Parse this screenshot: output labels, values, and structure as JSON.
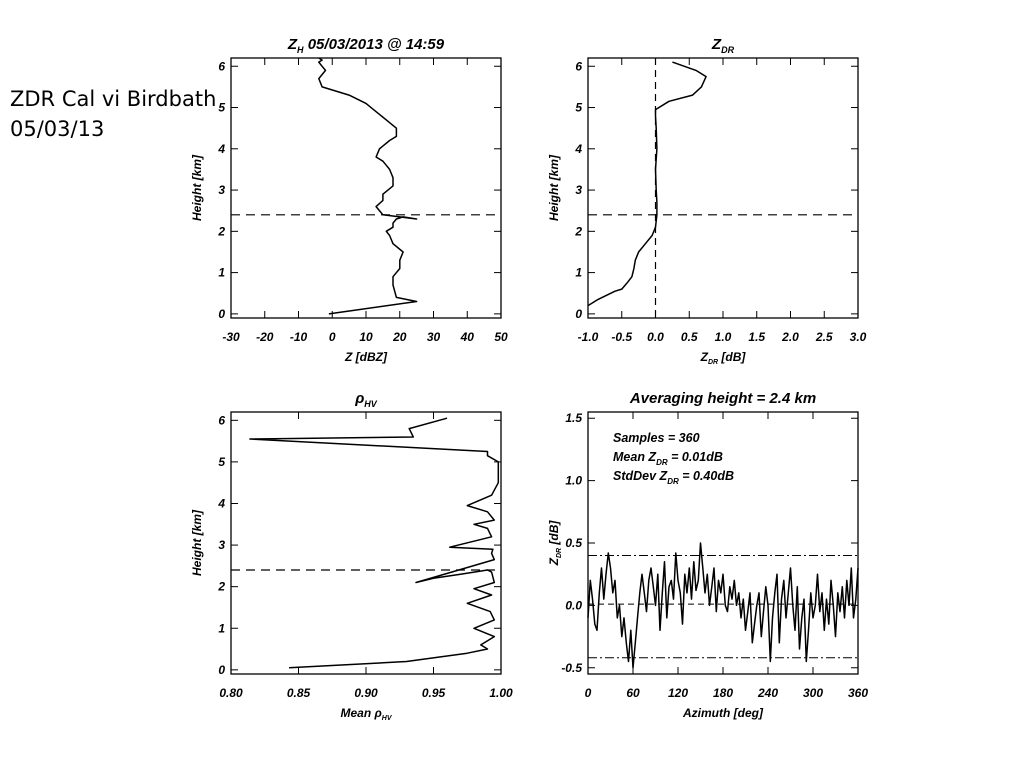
{
  "slide": {
    "title_line1": "ZDR Cal vi Birdbath",
    "title_line2": "05/03/13"
  },
  "colors": {
    "line": "#000000",
    "background": "#ffffff"
  },
  "chart_data": [
    {
      "id": "zh",
      "type": "line",
      "title": "Z",
      "title_sub": "H",
      "title_rest": " 05/03/2013 @ 14:59",
      "xlabel": "Z [dBZ]",
      "ylabel": "Height [km]",
      "xlim": [
        -30,
        50
      ],
      "ylim": [
        -0.1,
        6.2
      ],
      "xticks": [
        "-30",
        "-20",
        "-10",
        "0",
        "10",
        "20",
        "30",
        "40",
        "50"
      ],
      "yticks": [
        "0",
        "1",
        "2",
        "3",
        "4",
        "5",
        "6"
      ],
      "hline": 2.4,
      "series": [
        {
          "x": [
            -1,
            25,
            19,
            18,
            18,
            20,
            20,
            21,
            18,
            17,
            16,
            18,
            18,
            19,
            21,
            25,
            15,
            13,
            15,
            15,
            18,
            18,
            17,
            16,
            15,
            13,
            14,
            17,
            19,
            19,
            16,
            13,
            10,
            5,
            -3,
            -4,
            -2,
            -3,
            -4,
            -3,
            -4
          ],
          "y": [
            0.0,
            0.3,
            0.4,
            0.7,
            0.9,
            1.1,
            1.3,
            1.5,
            1.7,
            1.9,
            2.0,
            2.1,
            2.2,
            2.3,
            2.35,
            2.3,
            2.4,
            2.6,
            2.75,
            2.9,
            3.1,
            3.3,
            3.5,
            3.6,
            3.7,
            3.8,
            4.0,
            4.2,
            4.3,
            4.5,
            4.7,
            4.9,
            5.1,
            5.3,
            5.5,
            5.7,
            5.9,
            6.0,
            6.1,
            6.15,
            6.2
          ]
        }
      ]
    },
    {
      "id": "zdr",
      "type": "line",
      "title": "Z",
      "title_sub": "DR",
      "title_rest": "",
      "xlabel": "Z",
      "xlabel_sub": "DR",
      "xlabel_rest": " [dB]",
      "ylabel": "Height [km]",
      "xlim": [
        -1.0,
        3.0
      ],
      "ylim": [
        -0.1,
        6.2
      ],
      "xticks": [
        "-1.0",
        "-0.5",
        "0.0",
        "0.5",
        "1.0",
        "1.5",
        "2.0",
        "2.5",
        "3.0"
      ],
      "yticks": [
        "0",
        "1",
        "2",
        "3",
        "4",
        "5",
        "6"
      ],
      "hline": 2.4,
      "vline": 0.0,
      "series": [
        {
          "x": [
            -1.0,
            -0.85,
            -0.6,
            -0.5,
            -0.42,
            -0.35,
            -0.32,
            -0.3,
            -0.25,
            -0.15,
            -0.05,
            0.0,
            0.02,
            0.02,
            0.01,
            0.0,
            0.02,
            0.01,
            0.0,
            0.0,
            0.2,
            0.55,
            0.68,
            0.75,
            0.6,
            0.25
          ],
          "y": [
            0.2,
            0.35,
            0.55,
            0.6,
            0.75,
            0.9,
            1.1,
            1.3,
            1.5,
            1.7,
            1.9,
            2.1,
            2.4,
            2.7,
            3.0,
            3.5,
            4.0,
            4.5,
            4.8,
            4.95,
            5.15,
            5.3,
            5.5,
            5.75,
            5.9,
            6.1
          ]
        }
      ]
    },
    {
      "id": "rhohv",
      "type": "line",
      "title": "ρ",
      "title_sub": "HV",
      "title_rest": "",
      "xlabel": "Mean ρ",
      "xlabel_sub": "HV",
      "xlabel_rest": "",
      "ylabel": "Height [km]",
      "xlim": [
        0.8,
        1.0
      ],
      "ylim": [
        -0.1,
        6.2
      ],
      "xticks": [
        "0.80",
        "0.85",
        "0.90",
        "0.95",
        "1.00"
      ],
      "yticks": [
        "0",
        "1",
        "2",
        "3",
        "4",
        "5",
        "6"
      ],
      "hline": 2.4,
      "series": [
        {
          "x": [
            0.843,
            0.93,
            0.975,
            0.99,
            0.985,
            0.995,
            0.98,
            0.995,
            0.992,
            0.975,
            0.993,
            0.98,
            0.995,
            0.993,
            0.99,
            0.97,
            0.95,
            0.937,
            0.995,
            0.993,
            0.994,
            0.962,
            0.993,
            0.99,
            0.98,
            0.995,
            0.99,
            0.975,
            0.993,
            0.998,
            0.998,
            0.998,
            0.99,
            0.99,
            0.814,
            0.935,
            0.932,
            0.96
          ],
          "y": [
            0.05,
            0.2,
            0.4,
            0.5,
            0.6,
            0.8,
            1.0,
            1.2,
            1.4,
            1.6,
            1.8,
            1.95,
            2.1,
            2.35,
            2.4,
            2.3,
            2.2,
            2.1,
            2.65,
            2.8,
            2.9,
            2.95,
            3.2,
            3.4,
            3.5,
            3.6,
            3.8,
            3.95,
            4.2,
            4.5,
            4.8,
            5.0,
            5.15,
            5.25,
            5.55,
            5.6,
            5.8,
            6.05
          ]
        }
      ]
    },
    {
      "id": "azimuth",
      "type": "line",
      "title": "Averaging height =  2.4 km",
      "xlabel": "Azimuth [deg]",
      "ylabel": "Z",
      "ylabel_sub": "DR",
      "ylabel_rest": " [dB]",
      "xlim": [
        0,
        360
      ],
      "ylim": [
        -0.55,
        1.55
      ],
      "xticks": [
        "0",
        "60",
        "120",
        "180",
        "240",
        "300",
        "360"
      ],
      "yticks": [
        "-0.5",
        "0.0",
        "0.5",
        "1.0",
        "1.5"
      ],
      "annotations": [
        {
          "text": "Samples =  360"
        },
        {
          "text": "Mean Z",
          "sub": "DR",
          "rest": " = 0.01dB"
        },
        {
          "text": "StdDev Z",
          "sub": "DR",
          "rest": " = 0.40dB"
        }
      ],
      "hlines_dashdot": [
        0.4,
        -0.42
      ],
      "hline_mean": 0.01,
      "series": [
        {
          "x": [
            0,
            3,
            6,
            9,
            12,
            15,
            18,
            21,
            24,
            27,
            30,
            33,
            36,
            39,
            42,
            45,
            48,
            51,
            54,
            57,
            60,
            63,
            66,
            69,
            72,
            75,
            78,
            81,
            84,
            87,
            90,
            93,
            96,
            99,
            102,
            105,
            108,
            111,
            114,
            117,
            120,
            123,
            126,
            129,
            132,
            135,
            138,
            141,
            144,
            147,
            150,
            153,
            156,
            159,
            162,
            165,
            168,
            171,
            174,
            177,
            180,
            183,
            186,
            189,
            192,
            195,
            198,
            201,
            204,
            207,
            210,
            213,
            216,
            219,
            222,
            225,
            228,
            231,
            234,
            237,
            240,
            243,
            246,
            249,
            252,
            255,
            258,
            261,
            264,
            267,
            270,
            273,
            276,
            279,
            282,
            285,
            288,
            291,
            294,
            297,
            300,
            303,
            306,
            309,
            312,
            315,
            318,
            321,
            324,
            327,
            330,
            333,
            336,
            339,
            342,
            345,
            348,
            351,
            354,
            357,
            360
          ],
          "y": [
            -0.1,
            0.2,
            0.05,
            -0.15,
            -0.2,
            0.1,
            0.3,
            0.05,
            0.25,
            0.42,
            0.3,
            0.1,
            0.2,
            -0.1,
            0.0,
            -0.25,
            -0.1,
            -0.3,
            -0.45,
            -0.2,
            -0.5,
            -0.3,
            -0.1,
            0.1,
            0.25,
            0.1,
            -0.05,
            0.2,
            0.3,
            0.15,
            0.0,
            0.25,
            -0.2,
            0.1,
            0.35,
            -0.1,
            0.15,
            0.2,
            0.05,
            0.42,
            0.2,
            0.1,
            -0.15,
            0.25,
            0.1,
            0.3,
            0.05,
            0.35,
            0.12,
            0.2,
            0.5,
            0.3,
            0.1,
            0.25,
            0.0,
            0.15,
            0.3,
            -0.05,
            0.2,
            0.1,
            0.25,
            0.0,
            -0.05,
            0.15,
            0.05,
            0.2,
            0.0,
            0.1,
            -0.1,
            0.05,
            -0.2,
            -0.05,
            0.1,
            -0.3,
            -0.15,
            0.0,
            0.1,
            -0.25,
            -0.05,
            0.15,
            0.0,
            -0.45,
            -0.1,
            0.1,
            0.25,
            -0.3,
            0.05,
            0.2,
            -0.1,
            0.1,
            0.3,
            0.0,
            -0.2,
            0.15,
            -0.35,
            -0.1,
            0.05,
            -0.45,
            -0.2,
            0.1,
            -0.1,
            0.0,
            0.25,
            -0.05,
            0.1,
            -0.2,
            0.05,
            -0.15,
            0.2,
            0.0,
            -0.25,
            0.1,
            -0.05,
            0.15,
            -0.1,
            0.2,
            0.0,
            0.3,
            -0.1,
            0.05,
            0.3
          ]
        }
      ]
    }
  ]
}
